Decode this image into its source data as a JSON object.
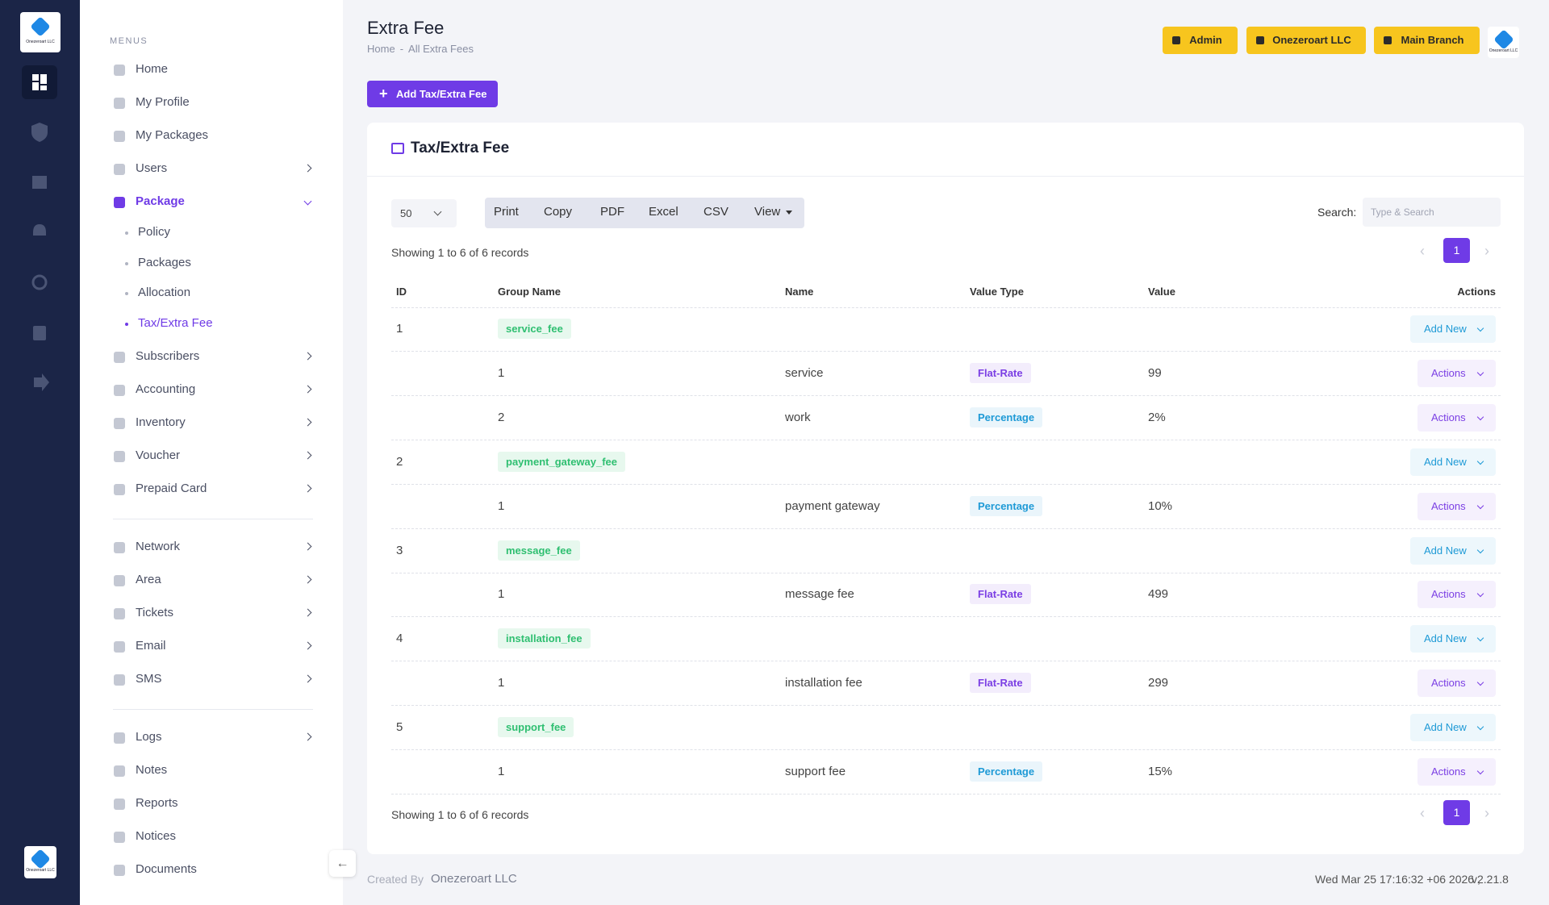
{
  "brand": {
    "name": "Onezeroart LLC"
  },
  "sidebar": {
    "heading": "MENUS",
    "groups": [
      [
        {
          "label": "Home"
        },
        {
          "label": "My Profile"
        },
        {
          "label": "My Packages"
        },
        {
          "label": "Users",
          "submenu": true
        },
        {
          "label": "Package",
          "submenu": true,
          "active": true,
          "children": [
            {
              "label": "Policy"
            },
            {
              "label": "Packages"
            },
            {
              "label": "Allocation"
            },
            {
              "label": "Tax/Extra Fee",
              "active": true
            }
          ]
        },
        {
          "label": "Subscribers",
          "submenu": true
        },
        {
          "label": "Accounting",
          "submenu": true
        },
        {
          "label": "Inventory",
          "submenu": true
        },
        {
          "label": "Voucher",
          "submenu": true
        },
        {
          "label": "Prepaid Card",
          "submenu": true
        }
      ],
      [
        {
          "label": "Network",
          "submenu": true
        },
        {
          "label": "Area",
          "submenu": true
        },
        {
          "label": "Tickets",
          "submenu": true
        },
        {
          "label": "Email",
          "submenu": true
        },
        {
          "label": "SMS",
          "submenu": true
        }
      ],
      [
        {
          "label": "Logs",
          "submenu": true
        },
        {
          "label": "Notes"
        },
        {
          "label": "Reports"
        },
        {
          "label": "Notices"
        },
        {
          "label": "Documents"
        }
      ]
    ]
  },
  "header": {
    "title": "Extra Fee",
    "breadcrumb": [
      "Home",
      "All Extra Fees"
    ],
    "separator": "-",
    "buttons": [
      "Admin",
      "Onezeroart LLC",
      "Main Branch"
    ]
  },
  "add_button": "Add Tax/Extra Fee",
  "card": {
    "title": "Tax/Extra Fee",
    "page_length": "50",
    "exports": [
      "Print",
      "Copy",
      "PDF",
      "Excel",
      "CSV",
      "View"
    ],
    "search_label": "Search:",
    "search_placeholder": "Type & Search",
    "info": "Showing 1 to 6 of 6 records",
    "page": "1"
  },
  "table": {
    "columns": [
      "ID",
      "Group Name",
      "Name",
      "Value Type",
      "Value",
      "Actions"
    ],
    "value_type_colors": {
      "Flat-Rate": "#7b3fe4",
      "Percentage": "#1e9ad6"
    },
    "rows": [
      {
        "id": "1",
        "group": "service_fee",
        "action": "Add New"
      },
      {
        "id": "1",
        "name": "service",
        "value_type": "Flat-Rate",
        "value": "99",
        "action": "Actions"
      },
      {
        "id": "2",
        "name": "work",
        "value_type": "Percentage",
        "value": "2%",
        "action": "Actions"
      },
      {
        "id": "2",
        "group": "payment_gateway_fee",
        "action": "Add New"
      },
      {
        "id": "1",
        "name": "payment gateway",
        "value_type": "Percentage",
        "value": "10%",
        "action": "Actions"
      },
      {
        "id": "3",
        "group": "message_fee",
        "action": "Add New"
      },
      {
        "id": "1",
        "name": "message fee",
        "value_type": "Flat-Rate",
        "value": "499",
        "action": "Actions"
      },
      {
        "id": "4",
        "group": "installation_fee",
        "action": "Add New"
      },
      {
        "id": "1",
        "name": "installation fee",
        "value_type": "Flat-Rate",
        "value": "299",
        "action": "Actions"
      },
      {
        "id": "5",
        "group": "support_fee",
        "action": "Add New"
      },
      {
        "id": "1",
        "name": "support fee",
        "value_type": "Percentage",
        "value": "15%",
        "action": "Actions"
      }
    ]
  },
  "footer": {
    "created_by": "Created By",
    "company": "Onezeroart LLC",
    "datetime": "Wed Mar 25 17:16:32 +06 2026 ,",
    "version": "v2.21.8"
  }
}
